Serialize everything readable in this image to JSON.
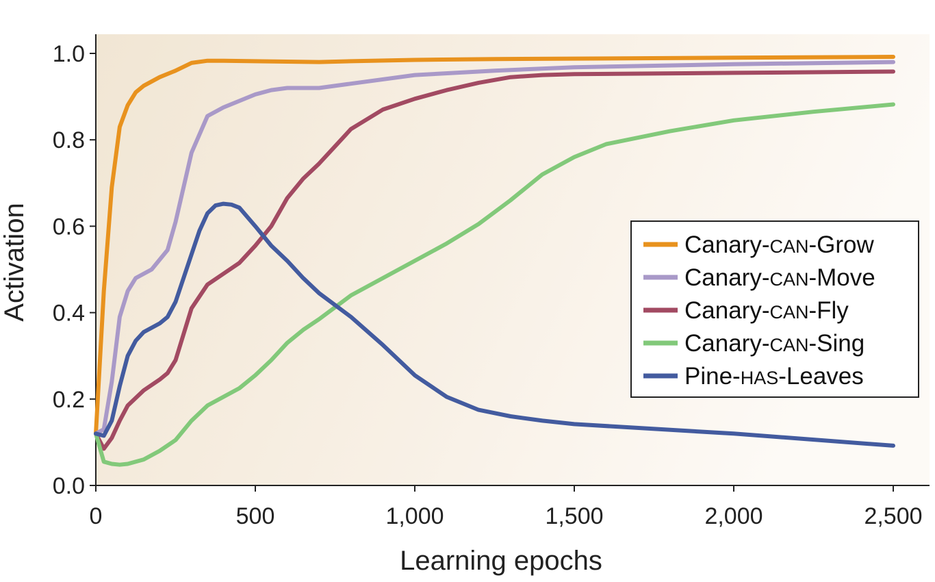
{
  "chart_data": {
    "type": "line",
    "title": "",
    "xlabel": "Learning epochs",
    "ylabel": "Activation",
    "xlim": [
      0,
      2500
    ],
    "ylim": [
      0,
      1.0
    ],
    "x_ticks": [
      0,
      500,
      1000,
      1500,
      2000,
      2500
    ],
    "x_tick_labels": [
      "0",
      "500",
      "1,000",
      "1,500",
      "2,000",
      "2,500"
    ],
    "y_ticks": [
      0,
      0.2,
      0.4,
      0.6,
      0.8,
      1.0
    ],
    "y_tick_labels": [
      "0.0",
      "0.2",
      "0.4",
      "0.6",
      "0.8",
      "1.0"
    ],
    "grid": false,
    "legend_position": "right",
    "series": [
      {
        "name": "Canary-CAN-Grow",
        "legend_parts": [
          "Canary-",
          "CAN",
          "-Grow"
        ],
        "color": "#E8921E",
        "x": [
          0,
          25,
          50,
          75,
          100,
          125,
          150,
          200,
          250,
          300,
          350,
          400,
          500,
          600,
          700,
          800,
          1000,
          1250,
          1500,
          2000,
          2500
        ],
        "y": [
          0.12,
          0.45,
          0.69,
          0.83,
          0.88,
          0.91,
          0.925,
          0.945,
          0.96,
          0.978,
          0.983,
          0.983,
          0.982,
          0.981,
          0.98,
          0.982,
          0.985,
          0.987,
          0.988,
          0.99,
          0.992
        ]
      },
      {
        "name": "Canary-CAN-Move",
        "legend_parts": [
          "Canary-",
          "CAN",
          "-Move"
        ],
        "color": "#A999C8",
        "x": [
          0,
          25,
          50,
          75,
          100,
          125,
          175,
          225,
          250,
          300,
          350,
          400,
          450,
          500,
          550,
          600,
          700,
          800,
          1000,
          1250,
          1500,
          2000,
          2500
        ],
        "y": [
          0.12,
          0.13,
          0.24,
          0.39,
          0.45,
          0.48,
          0.5,
          0.545,
          0.61,
          0.77,
          0.855,
          0.875,
          0.89,
          0.905,
          0.915,
          0.92,
          0.92,
          0.93,
          0.95,
          0.96,
          0.968,
          0.975,
          0.98
        ]
      },
      {
        "name": "Canary-CAN-Fly",
        "legend_parts": [
          "Canary-",
          "CAN",
          "-Fly"
        ],
        "color": "#A24A62",
        "x": [
          0,
          25,
          50,
          75,
          100,
          150,
          200,
          225,
          250,
          300,
          350,
          400,
          450,
          500,
          550,
          600,
          650,
          700,
          750,
          800,
          900,
          1000,
          1100,
          1200,
          1300,
          1400,
          1500,
          2000,
          2500
        ],
        "y": [
          0.12,
          0.085,
          0.11,
          0.15,
          0.185,
          0.22,
          0.245,
          0.26,
          0.29,
          0.41,
          0.465,
          0.49,
          0.515,
          0.555,
          0.6,
          0.665,
          0.71,
          0.745,
          0.785,
          0.825,
          0.87,
          0.895,
          0.915,
          0.932,
          0.945,
          0.95,
          0.952,
          0.955,
          0.958
        ]
      },
      {
        "name": "Canary-CAN-Sing",
        "legend_parts": [
          "Canary-",
          "CAN",
          "-Sing"
        ],
        "color": "#82C97A",
        "x": [
          0,
          25,
          50,
          75,
          100,
          150,
          200,
          250,
          300,
          350,
          400,
          450,
          500,
          550,
          600,
          650,
          700,
          800,
          900,
          1000,
          1100,
          1200,
          1300,
          1400,
          1500,
          1600,
          1800,
          2000,
          2250,
          2500
        ],
        "y": [
          0.12,
          0.055,
          0.05,
          0.048,
          0.05,
          0.06,
          0.08,
          0.105,
          0.15,
          0.185,
          0.205,
          0.225,
          0.255,
          0.29,
          0.33,
          0.36,
          0.385,
          0.44,
          0.48,
          0.52,
          0.56,
          0.605,
          0.66,
          0.72,
          0.76,
          0.79,
          0.82,
          0.845,
          0.865,
          0.882
        ]
      },
      {
        "name": "Pine-HAS-Leaves",
        "legend_parts": [
          "Pine-",
          "HAS",
          "-Leaves"
        ],
        "color": "#435B9F",
        "x": [
          0,
          25,
          50,
          75,
          100,
          125,
          150,
          200,
          225,
          250,
          300,
          325,
          350,
          375,
          400,
          425,
          450,
          500,
          550,
          600,
          650,
          700,
          800,
          900,
          1000,
          1100,
          1200,
          1300,
          1400,
          1500,
          2000,
          2500
        ],
        "y": [
          0.12,
          0.115,
          0.15,
          0.23,
          0.3,
          0.335,
          0.355,
          0.375,
          0.39,
          0.425,
          0.535,
          0.59,
          0.63,
          0.648,
          0.652,
          0.65,
          0.643,
          0.6,
          0.555,
          0.52,
          0.48,
          0.445,
          0.39,
          0.325,
          0.255,
          0.205,
          0.175,
          0.16,
          0.15,
          0.142,
          0.12,
          0.092
        ]
      }
    ]
  }
}
